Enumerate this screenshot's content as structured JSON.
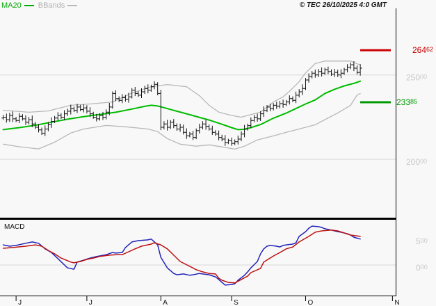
{
  "header": {
    "legend": [
      {
        "label": "MA20",
        "color": "#00aa00"
      },
      {
        "label": "BBands",
        "color": "#b8b8b8"
      }
    ],
    "copyright": "© TEC 26/10/2025 4:0 GMT"
  },
  "chart_data": [
    {
      "type": "ohlc",
      "title": "Daily OHLC price with MA20 and Bollinger Bands",
      "ylim": [
        16550,
        28940
      ],
      "grid": "horizontal",
      "days_total": 123,
      "gridlines": [
        {
          "value": 25000,
          "label_main": "250",
          "label_sub": "00"
        },
        {
          "value": 20000,
          "label_main": "200",
          "label_sub": "00"
        }
      ],
      "levels": [
        {
          "name": "resistance",
          "value": 26462,
          "label_main": "264",
          "label_sub": "62",
          "color": "#cc0000"
        },
        {
          "name": "support",
          "value": 23385,
          "label_main": "233",
          "label_sub": "85",
          "color": "#009900"
        }
      ],
      "x_ticks": [
        {
          "day": 4,
          "label": "J"
        },
        {
          "day": 26,
          "label": "J"
        },
        {
          "day": 49,
          "label": "A"
        },
        {
          "day": 71,
          "label": "S"
        },
        {
          "day": 94,
          "label": "O"
        },
        {
          "day": 121,
          "label": "N"
        }
      ],
      "bar_color": "#111111",
      "wick_pattern": [
        130,
        210,
        160,
        240,
        120,
        190
      ],
      "closes": [
        22500,
        22350,
        22600,
        22400,
        22300,
        22550,
        22400,
        22200,
        22350,
        22100,
        21900,
        21750,
        21550,
        21800,
        22050,
        22250,
        22450,
        22600,
        22500,
        22700,
        22850,
        23000,
        22900,
        23100,
        22950,
        23050,
        22850,
        22700,
        22500,
        22400,
        22600,
        22500,
        22800,
        23100,
        23900,
        23600,
        23500,
        23650,
        23550,
        23700,
        24100,
        23900,
        23800,
        24000,
        24200,
        24100,
        24300,
        24440,
        23900,
        21900,
        22100,
        21900,
        22200,
        22000,
        21800,
        21900,
        21600,
        21400,
        21500,
        21300,
        21700,
        21900,
        22100,
        21950,
        21800,
        21600,
        21500,
        21300,
        21200,
        21000,
        21100,
        20950,
        21050,
        21200,
        21500,
        21800,
        22000,
        22300,
        22500,
        22400,
        22700,
        22900,
        23100,
        23000,
        23200,
        23150,
        23300,
        23250,
        23400,
        23600,
        23500,
        23800,
        24000,
        24200,
        24700,
        24900,
        25100,
        25000,
        25200,
        25100,
        25300,
        25200,
        25050,
        25150,
        25000,
        25100,
        25300,
        25450,
        25600,
        25400,
        25150,
        25400
      ],
      "series": [
        {
          "name": "MA20",
          "color": "#00bb00",
          "width": 2,
          "points": [
            [
              0,
              21760
            ],
            [
              5,
              21880
            ],
            [
              10,
              22020
            ],
            [
              15,
              22200
            ],
            [
              20,
              22380
            ],
            [
              25,
              22530
            ],
            [
              30,
              22660
            ],
            [
              35,
              22790
            ],
            [
              40,
              22980
            ],
            [
              44,
              23140
            ],
            [
              46,
              23200
            ],
            [
              48,
              23160
            ],
            [
              50,
              23060
            ],
            [
              53,
              22900
            ],
            [
              56,
              22750
            ],
            [
              60,
              22540
            ],
            [
              64,
              22330
            ],
            [
              68,
              22080
            ],
            [
              71,
              21880
            ],
            [
              73,
              21760
            ],
            [
              75,
              21780
            ],
            [
              77,
              21880
            ],
            [
              80,
              22060
            ],
            [
              84,
              22440
            ],
            [
              88,
              22740
            ],
            [
              90,
              22920
            ],
            [
              94,
              23280
            ],
            [
              97,
              23520
            ],
            [
              100,
              23900
            ],
            [
              103,
              24150
            ],
            [
              106,
              24350
            ],
            [
              109,
              24500
            ],
            [
              111,
              24630
            ]
          ]
        },
        {
          "name": "BB_upper",
          "color": "#b8b8b8",
          "width": 1.3,
          "points": [
            [
              0,
              22910
            ],
            [
              8,
              22790
            ],
            [
              14,
              22870
            ],
            [
              21,
              23200
            ],
            [
              27,
              23280
            ],
            [
              34,
              23400
            ],
            [
              40,
              23930
            ],
            [
              46,
              24300
            ],
            [
              51,
              24430
            ],
            [
              57,
              24300
            ],
            [
              61,
              23770
            ],
            [
              64,
              23200
            ],
            [
              67,
              22800
            ],
            [
              71,
              22600
            ],
            [
              74,
              22500
            ],
            [
              77,
              22650
            ],
            [
              80,
              22800
            ],
            [
              84,
              23400
            ],
            [
              87,
              23700
            ],
            [
              89,
              24030
            ],
            [
              92,
              24600
            ],
            [
              94,
              25120
            ],
            [
              97,
              25670
            ],
            [
              100,
              25820
            ],
            [
              104,
              25820
            ],
            [
              108,
              25820
            ],
            [
              110,
              25660
            ],
            [
              111,
              25600
            ]
          ]
        },
        {
          "name": "BB_lower",
          "color": "#b8b8b8",
          "width": 1.3,
          "points": [
            [
              0,
              20900
            ],
            [
              5,
              20750
            ],
            [
              11,
              20620
            ],
            [
              16,
              21020
            ],
            [
              21,
              21560
            ],
            [
              25,
              21800
            ],
            [
              32,
              22010
            ],
            [
              38,
              21930
            ],
            [
              45,
              21800
            ],
            [
              48,
              21640
            ],
            [
              51,
              21230
            ],
            [
              55,
              20900
            ],
            [
              60,
              20780
            ],
            [
              64,
              20860
            ],
            [
              68,
              20740
            ],
            [
              72,
              20610
            ],
            [
              75,
              20780
            ],
            [
              79,
              21150
            ],
            [
              84,
              21390
            ],
            [
              88,
              21600
            ],
            [
              92,
              21800
            ],
            [
              97,
              22050
            ],
            [
              99,
              22250
            ],
            [
              104,
              22750
            ],
            [
              108,
              23200
            ],
            [
              110,
              23810
            ],
            [
              111,
              23900
            ]
          ]
        }
      ]
    },
    {
      "type": "line",
      "title": "MACD",
      "ylim": [
        -579,
        855
      ],
      "grid": "zero-line",
      "gridlines": [
        {
          "value": 0
        }
      ],
      "y_labels": [
        {
          "value": 500,
          "label_main": "5",
          "label_sub": "00"
        },
        {
          "value": 0,
          "label_main": "0",
          "label_sub": "00"
        }
      ],
      "series": [
        {
          "name": "MACD",
          "color": "#2222bb",
          "width": 1.5,
          "points": [
            [
              0,
              380
            ],
            [
              2,
              355
            ],
            [
              4,
              370
            ],
            [
              7,
              410
            ],
            [
              9,
              435
            ],
            [
              11,
              410
            ],
            [
              13,
              305
            ],
            [
              15,
              235
            ],
            [
              17,
              120
            ],
            [
              20,
              -55
            ],
            [
              22,
              -80
            ],
            [
              23,
              55
            ],
            [
              25,
              90
            ],
            [
              27,
              130
            ],
            [
              29,
              160
            ],
            [
              32,
              195
            ],
            [
              34,
              235
            ],
            [
              35,
              225
            ],
            [
              37,
              235
            ],
            [
              38,
              330
            ],
            [
              40,
              435
            ],
            [
              42,
              460
            ],
            [
              45,
              475
            ],
            [
              46,
              490
            ],
            [
              48,
              380
            ],
            [
              49,
              145
            ],
            [
              51,
              -55
            ],
            [
              53,
              -160
            ],
            [
              54,
              -185
            ],
            [
              56,
              -170
            ],
            [
              58,
              -195
            ],
            [
              59,
              -185
            ],
            [
              61,
              -160
            ],
            [
              62,
              -170
            ],
            [
              64,
              -185
            ],
            [
              66,
              -225
            ],
            [
              67,
              -275
            ],
            [
              68,
              -330
            ],
            [
              69,
              -380
            ],
            [
              71,
              -370
            ],
            [
              72,
              -355
            ],
            [
              73,
              -290
            ],
            [
              75,
              -195
            ],
            [
              76,
              -130
            ],
            [
              77,
              -55
            ],
            [
              79,
              65
            ],
            [
              80,
              210
            ],
            [
              81,
              305
            ],
            [
              82,
              355
            ],
            [
              83,
              370
            ],
            [
              85,
              355
            ],
            [
              86,
              340
            ],
            [
              87,
              370
            ],
            [
              88,
              380
            ],
            [
              90,
              395
            ],
            [
              91,
              420
            ],
            [
              92,
              540
            ],
            [
              94,
              630
            ],
            [
              95,
              695
            ],
            [
              96,
              735
            ],
            [
              98,
              725
            ],
            [
              99,
              710
            ],
            [
              100,
              685
            ],
            [
              102,
              660
            ],
            [
              103,
              645
            ],
            [
              104,
              630
            ],
            [
              105,
              620
            ],
            [
              107,
              590
            ],
            [
              108,
              565
            ],
            [
              109,
              525
            ],
            [
              111,
              490
            ]
          ]
        },
        {
          "name": "signal",
          "color": "#bb1111",
          "width": 1.5,
          "points": [
            [
              0,
              315
            ],
            [
              3,
              330
            ],
            [
              7,
              355
            ],
            [
              10,
              380
            ],
            [
              12,
              355
            ],
            [
              14,
              275
            ],
            [
              16,
              210
            ],
            [
              18,
              130
            ],
            [
              21,
              55
            ],
            [
              22,
              40
            ],
            [
              24,
              65
            ],
            [
              26,
              105
            ],
            [
              28,
              130
            ],
            [
              30,
              160
            ],
            [
              33,
              185
            ],
            [
              35,
              195
            ],
            [
              37,
              195
            ],
            [
              39,
              250
            ],
            [
              41,
              305
            ],
            [
              43,
              355
            ],
            [
              46,
              395
            ],
            [
              47,
              420
            ],
            [
              49,
              380
            ],
            [
              51,
              305
            ],
            [
              53,
              185
            ],
            [
              55,
              65
            ],
            [
              58,
              -25
            ],
            [
              60,
              -90
            ],
            [
              62,
              -130
            ],
            [
              64,
              -160
            ],
            [
              66,
              -170
            ],
            [
              67,
              -250
            ],
            [
              68,
              -290
            ],
            [
              70,
              -330
            ],
            [
              72,
              -340
            ],
            [
              74,
              -275
            ],
            [
              76,
              -210
            ],
            [
              77,
              -145
            ],
            [
              80,
              -65
            ],
            [
              81,
              55
            ],
            [
              84,
              170
            ],
            [
              86,
              235
            ],
            [
              88,
              305
            ],
            [
              90,
              340
            ],
            [
              92,
              435
            ],
            [
              95,
              540
            ],
            [
              97,
              620
            ],
            [
              99,
              645
            ],
            [
              102,
              660
            ],
            [
              104,
              645
            ],
            [
              106,
              605
            ],
            [
              108,
              565
            ],
            [
              111,
              540
            ]
          ]
        }
      ]
    }
  ]
}
